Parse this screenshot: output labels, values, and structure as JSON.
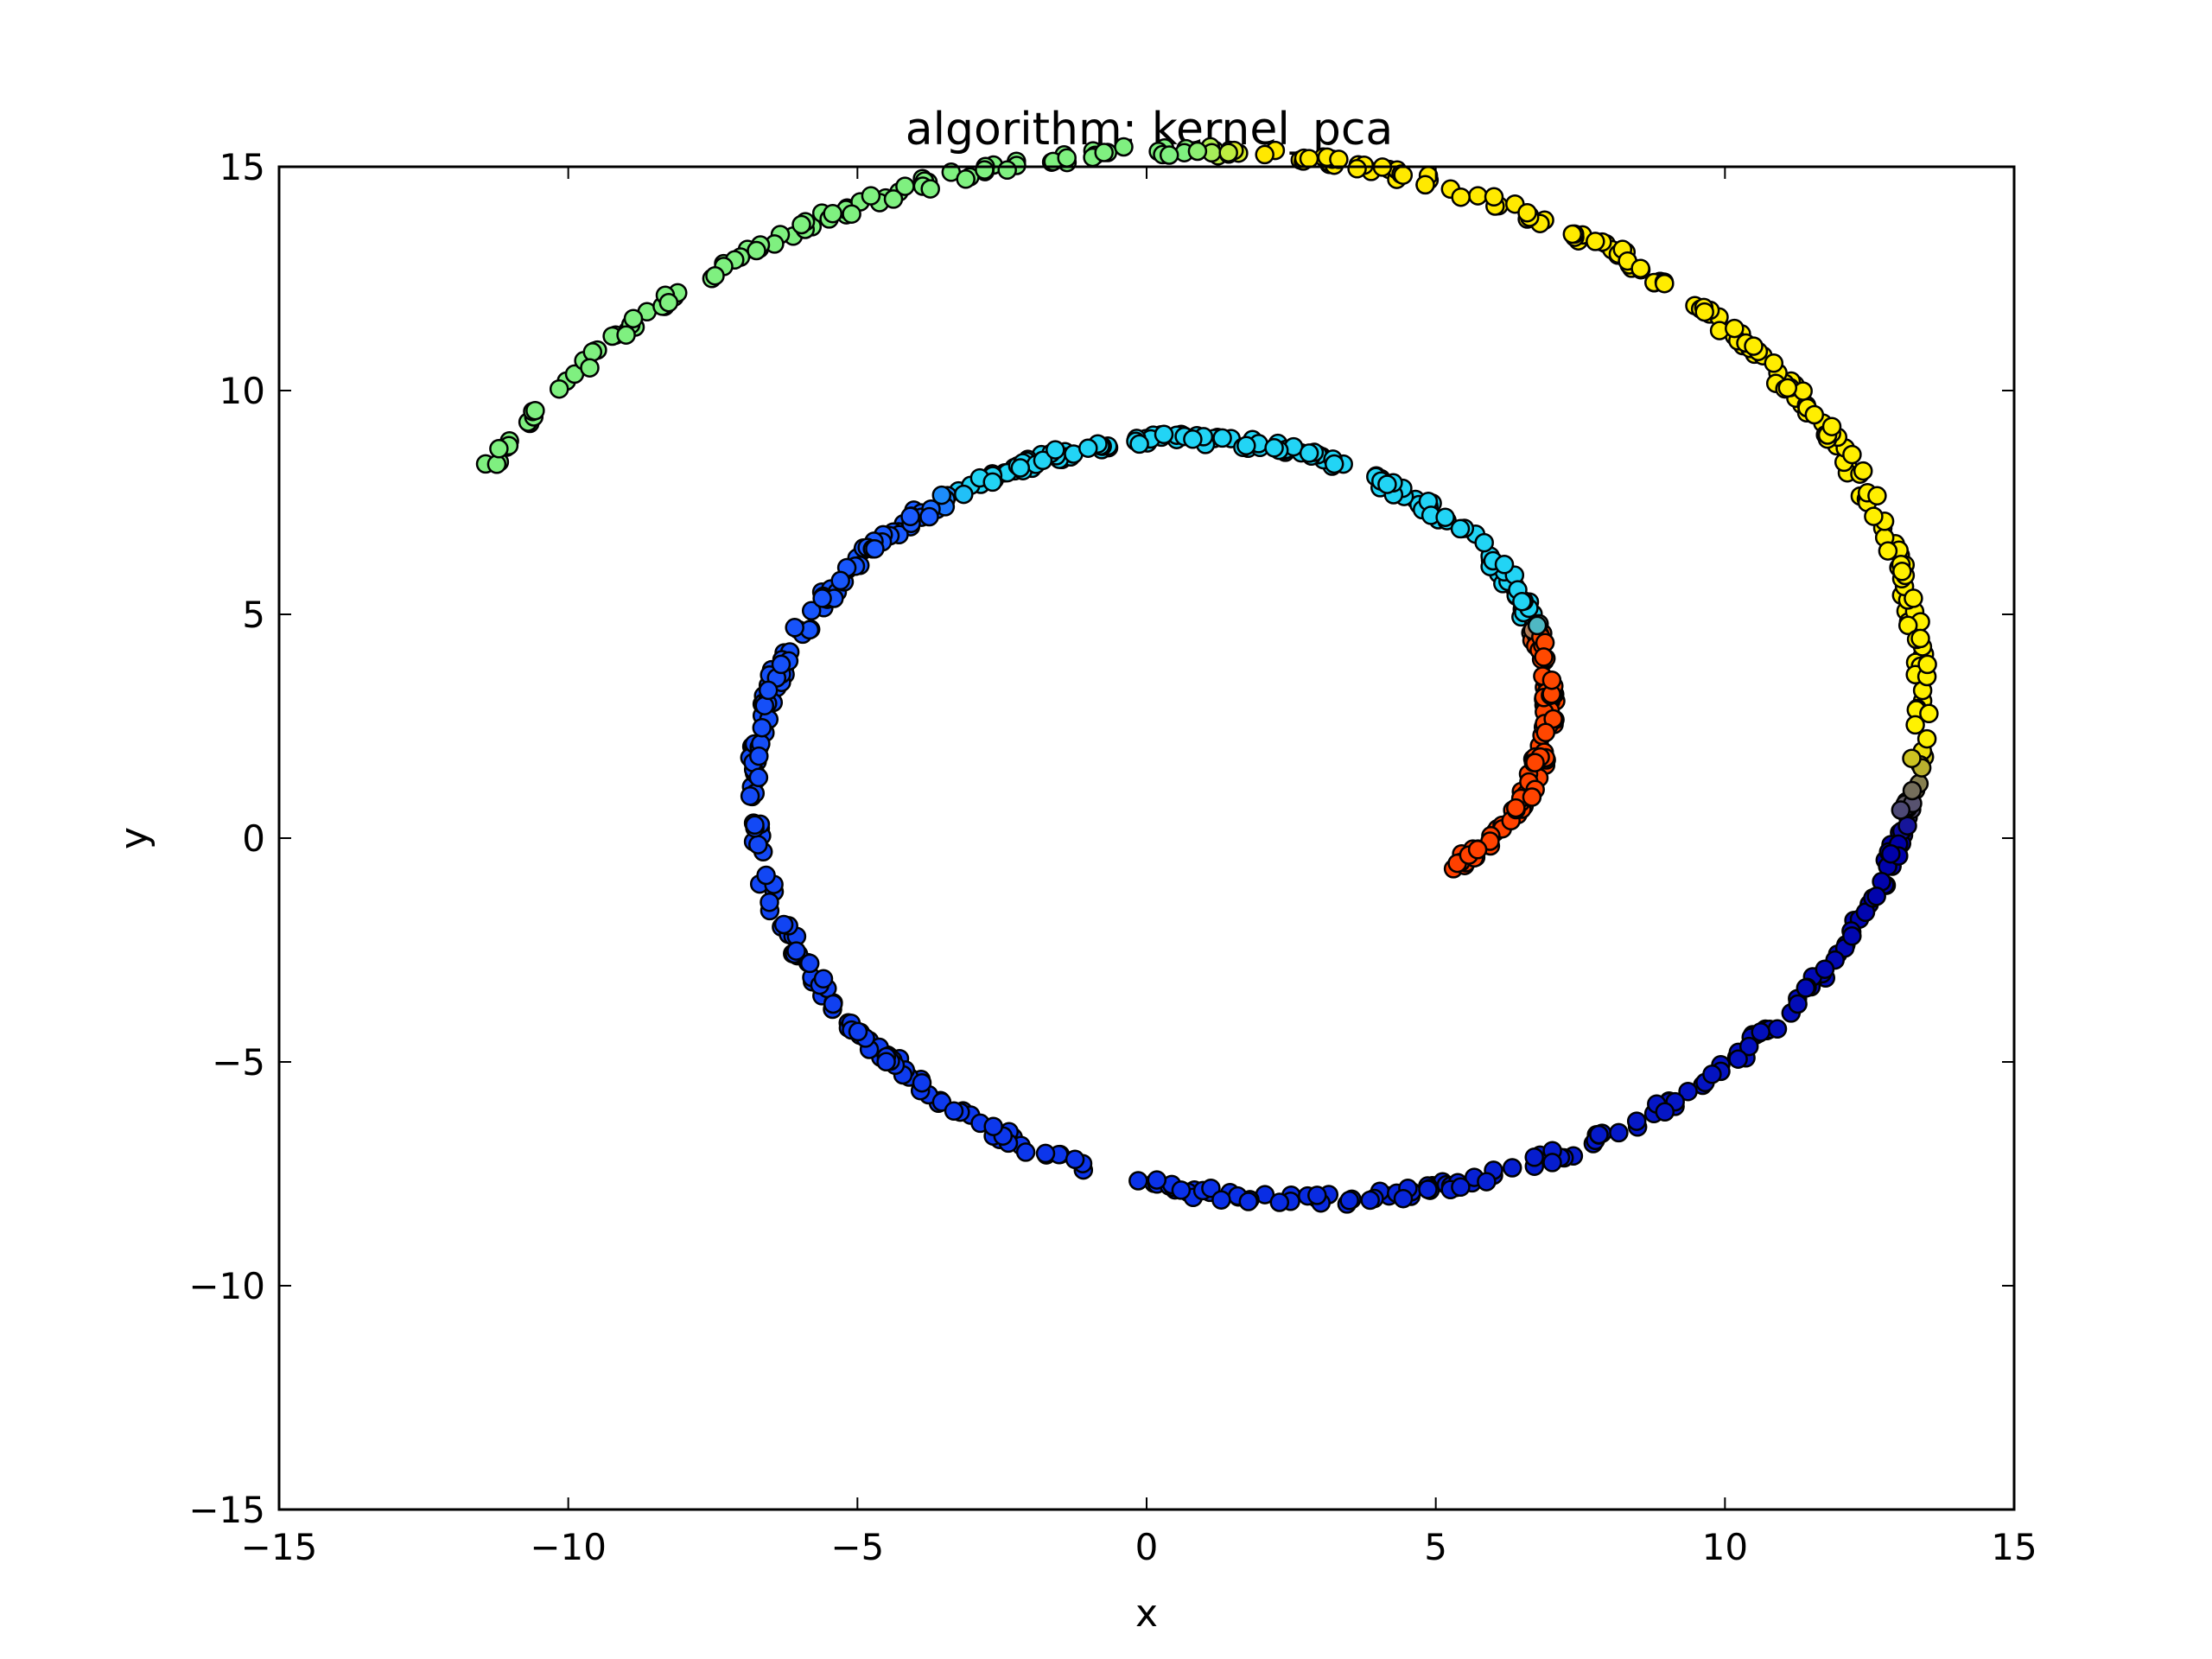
{
  "chart_data": {
    "type": "scatter",
    "title": "algorithm: kernel_pca",
    "xlabel": "x",
    "ylabel": "y",
    "xlim": [
      -15,
      15
    ],
    "ylim": [
      -15,
      15
    ],
    "xticks": [
      -15,
      -10,
      -5,
      0,
      5,
      10,
      15
    ],
    "yticks": [
      -15,
      -10,
      -5,
      0,
      5,
      10,
      15
    ],
    "xtick_labels": [
      "−15",
      "−10",
      "−5",
      "0",
      "5",
      "10",
      "15"
    ],
    "ytick_labels": [
      "−15",
      "−10",
      "−5",
      "0",
      "5",
      "10",
      "15"
    ],
    "grid": false,
    "colormap": "jet",
    "marker_edge_color": "#000000",
    "shape": "spiral",
    "spiral": {
      "start": [
        5.4,
        -0.6
      ],
      "end": [
        -11.4,
        8.2
      ],
      "theta_start": 4.4,
      "theta_end": 14.0,
      "radius_scale": 0.9,
      "points": 900,
      "noise": 0.12
    },
    "color_stops": [
      {
        "pos": 0.0,
        "color": "#ff4000"
      },
      {
        "pos": 0.11,
        "color": "#ff4a00"
      },
      {
        "pos": 0.12,
        "color": "#22d4f5"
      },
      {
        "pos": 0.3,
        "color": "#22d4f5"
      },
      {
        "pos": 0.31,
        "color": "#1a5cff"
      },
      {
        "pos": 0.55,
        "color": "#0a30e8"
      },
      {
        "pos": 0.7,
        "color": "#0000a8"
      },
      {
        "pos": 0.72,
        "color": "#fff200"
      },
      {
        "pos": 0.88,
        "color": "#ffe800"
      },
      {
        "pos": 0.89,
        "color": "#7ff080"
      },
      {
        "pos": 1.0,
        "color": "#7ff080"
      }
    ]
  }
}
